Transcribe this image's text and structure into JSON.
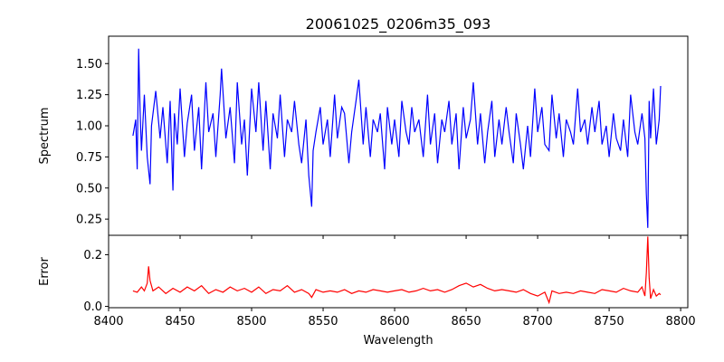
{
  "chart_data": {
    "type": "line",
    "title": "20061025_0206m35_093",
    "xlabel": "Wavelength",
    "xlim": [
      8400,
      8805
    ],
    "xticks": [
      8400,
      8450,
      8500,
      8550,
      8600,
      8650,
      8700,
      8750,
      8800
    ],
    "grid": false,
    "panels": [
      {
        "name": "spectrum",
        "ylabel": "Spectrum",
        "ylim": [
          0.12,
          1.72
        ],
        "yticks": [
          0.25,
          0.5,
          0.75,
          1.0,
          1.25,
          1.5
        ],
        "ytick_labels": [
          "0.25",
          "0.50",
          "0.75",
          "1.00",
          "1.25",
          "1.50"
        ],
        "series": [
          {
            "color": "#0000ff",
            "x": [
              8417,
              8419,
              8420,
              8421,
              8422,
              8423,
              8425,
              8427,
              8429,
              8430,
              8433,
              8436,
              8438,
              8441,
              8443,
              8445,
              8446,
              8448,
              8450,
              8453,
              8455,
              8458,
              8460,
              8463,
              8465,
              8468,
              8470,
              8473,
              8475,
              8478,
              8479,
              8482,
              8485,
              8488,
              8490,
              8493,
              8495,
              8497,
              8500,
              8503,
              8505,
              8508,
              8510,
              8513,
              8515,
              8518,
              8520,
              8523,
              8525,
              8528,
              8530,
              8533,
              8535,
              8538,
              8540,
              8542,
              8543,
              8545,
              8548,
              8550,
              8553,
              8555,
              8558,
              8560,
              8563,
              8565,
              8568,
              8570,
              8573,
              8575,
              8578,
              8580,
              8583,
              8585,
              8588,
              8590,
              8593,
              8595,
              8598,
              8600,
              8603,
              8605,
              8608,
              8610,
              8612,
              8614,
              8617,
              8620,
              8623,
              8625,
              8628,
              8630,
              8633,
              8635,
              8638,
              8640,
              8643,
              8645,
              8648,
              8650,
              8653,
              8655,
              8658,
              8660,
              8663,
              8665,
              8668,
              8670,
              8673,
              8675,
              8678,
              8680,
              8683,
              8685,
              8688,
              8690,
              8693,
              8695,
              8698,
              8700,
              8703,
              8705,
              8708,
              8710,
              8713,
              8715,
              8718,
              8720,
              8723,
              8725,
              8728,
              8730,
              8733,
              8735,
              8738,
              8740,
              8743,
              8745,
              8748,
              8750,
              8753,
              8755,
              8758,
              8760,
              8763,
              8765,
              8768,
              8770,
              8773,
              8775,
              8776,
              8777,
              8778,
              8779,
              8781,
              8783,
              8785,
              8786
            ],
            "y": [
              0.92,
              1.05,
              0.65,
              1.62,
              1.12,
              0.8,
              1.25,
              0.75,
              0.53,
              1.0,
              1.28,
              0.9,
              1.15,
              0.7,
              1.2,
              0.48,
              1.1,
              0.85,
              1.3,
              0.75,
              1.02,
              1.25,
              0.8,
              1.15,
              0.65,
              1.35,
              0.95,
              1.1,
              0.75,
              1.25,
              1.46,
              0.9,
              1.15,
              0.7,
              1.35,
              0.85,
              1.05,
              0.6,
              1.3,
              0.95,
              1.35,
              0.8,
              1.2,
              0.65,
              1.1,
              0.9,
              1.25,
              0.75,
              1.05,
              0.95,
              1.2,
              0.85,
              0.7,
              1.05,
              0.6,
              0.35,
              0.8,
              0.95,
              1.15,
              0.85,
              1.05,
              0.75,
              1.25,
              0.9,
              1.15,
              1.1,
              0.7,
              0.95,
              1.2,
              1.37,
              0.85,
              1.15,
              0.75,
              1.05,
              0.95,
              1.1,
              0.65,
              1.15,
              0.85,
              1.05,
              0.75,
              1.2,
              0.95,
              0.85,
              1.15,
              0.95,
              1.05,
              0.75,
              1.25,
              0.85,
              1.1,
              0.7,
              1.05,
              0.95,
              1.2,
              0.85,
              1.1,
              0.65,
              1.15,
              0.9,
              1.05,
              1.35,
              0.85,
              1.1,
              0.7,
              0.95,
              1.2,
              0.75,
              1.05,
              0.85,
              1.15,
              0.95,
              0.7,
              1.1,
              0.85,
              0.65,
              1.0,
              0.75,
              1.3,
              0.95,
              1.15,
              0.85,
              0.8,
              1.25,
              0.9,
              1.1,
              0.75,
              1.05,
              0.95,
              0.85,
              1.3,
              0.95,
              1.05,
              0.85,
              1.15,
              0.95,
              1.2,
              0.85,
              1.0,
              0.75,
              1.1,
              0.9,
              0.8,
              1.05,
              0.75,
              1.25,
              0.95,
              0.85,
              1.1,
              0.9,
              0.45,
              0.18,
              1.2,
              0.9,
              1.3,
              0.85,
              1.05,
              1.32
            ]
          }
        ]
      },
      {
        "name": "error",
        "ylabel": "Error",
        "ylim": [
          -0.005,
          0.275
        ],
        "yticks": [
          0.0,
          0.2
        ],
        "ytick_labels": [
          "0.0",
          "0.2"
        ],
        "series": [
          {
            "color": "#ff0000",
            "x": [
              8417,
              8420,
              8423,
              8425,
              8427,
              8428,
              8429,
              8431,
              8435,
              8440,
              8445,
              8450,
              8455,
              8460,
              8465,
              8470,
              8475,
              8480,
              8485,
              8490,
              8495,
              8500,
              8505,
              8510,
              8515,
              8520,
              8525,
              8530,
              8535,
              8540,
              8542,
              8545,
              8550,
              8555,
              8560,
              8565,
              8570,
              8575,
              8580,
              8585,
              8590,
              8595,
              8600,
              8605,
              8610,
              8615,
              8620,
              8625,
              8630,
              8635,
              8640,
              8645,
              8650,
              8655,
              8660,
              8665,
              8670,
              8675,
              8680,
              8685,
              8690,
              8695,
              8700,
              8705,
              8708,
              8710,
              8715,
              8720,
              8725,
              8730,
              8735,
              8740,
              8745,
              8750,
              8755,
              8760,
              8765,
              8770,
              8773,
              8775,
              8776,
              8777,
              8778,
              8779,
              8781,
              8783,
              8785,
              8786
            ],
            "y": [
              0.06,
              0.055,
              0.075,
              0.06,
              0.09,
              0.155,
              0.1,
              0.06,
              0.075,
              0.05,
              0.07,
              0.055,
              0.075,
              0.06,
              0.08,
              0.05,
              0.065,
              0.055,
              0.075,
              0.06,
              0.07,
              0.055,
              0.075,
              0.05,
              0.065,
              0.06,
              0.08,
              0.055,
              0.065,
              0.05,
              0.035,
              0.065,
              0.055,
              0.06,
              0.055,
              0.065,
              0.05,
              0.06,
              0.055,
              0.065,
              0.06,
              0.055,
              0.06,
              0.065,
              0.055,
              0.06,
              0.07,
              0.06,
              0.065,
              0.055,
              0.065,
              0.08,
              0.09,
              0.075,
              0.085,
              0.07,
              0.06,
              0.065,
              0.06,
              0.055,
              0.065,
              0.05,
              0.04,
              0.055,
              0.015,
              0.06,
              0.05,
              0.055,
              0.05,
              0.06,
              0.055,
              0.05,
              0.065,
              0.06,
              0.055,
              0.07,
              0.06,
              0.055,
              0.075,
              0.04,
              0.13,
              0.27,
              0.11,
              0.03,
              0.065,
              0.04,
              0.05,
              0.045
            ]
          }
        ]
      }
    ]
  }
}
